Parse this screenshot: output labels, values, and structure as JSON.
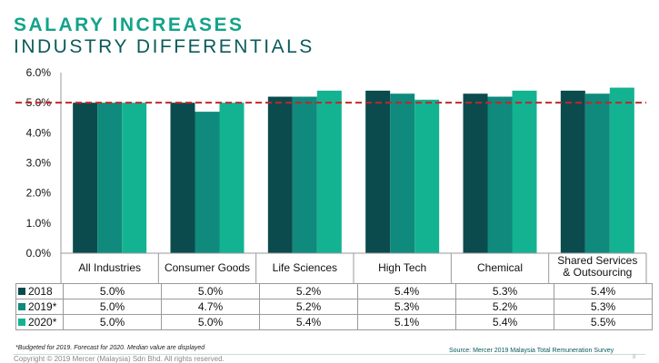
{
  "header": {
    "title_line1": "SALARY INCREASES",
    "title_line2": "INDUSTRY DIFFERENTIALS"
  },
  "colors": {
    "title_accent": "#13a38a",
    "title_dark": "#0b5a5c",
    "series_2018": "#0b4b4d",
    "series_2019": "#0f8a7c",
    "series_2020": "#13b391",
    "reference_line": "#c0272d"
  },
  "chart_data": {
    "type": "bar",
    "categories": [
      "All Industries",
      "Consumer Goods",
      "Life Sciences",
      "High Tech",
      "Chemical",
      "Shared Services & Outsourcing"
    ],
    "category_labels": [
      [
        "All Industries"
      ],
      [
        "Consumer Goods"
      ],
      [
        "Life Sciences"
      ],
      [
        "High Tech"
      ],
      [
        "Chemical"
      ],
      [
        "Shared Services",
        "& Outsourcing"
      ]
    ],
    "series": [
      {
        "name": "2018",
        "values": [
          5.0,
          5.0,
          5.2,
          5.4,
          5.3,
          5.4
        ],
        "labels": [
          "5.0%",
          "5.0%",
          "5.2%",
          "5.4%",
          "5.3%",
          "5.4%"
        ]
      },
      {
        "name": "2019*",
        "values": [
          5.0,
          4.7,
          5.2,
          5.3,
          5.2,
          5.3
        ],
        "labels": [
          "5.0%",
          "4.7%",
          "5.2%",
          "5.3%",
          "5.2%",
          "5.3%"
        ]
      },
      {
        "name": "2020*",
        "values": [
          5.0,
          5.0,
          5.4,
          5.1,
          5.4,
          5.5
        ],
        "labels": [
          "5.0%",
          "5.0%",
          "5.4%",
          "5.1%",
          "5.4%",
          "5.5%"
        ]
      }
    ],
    "yticks": [
      "0.0%",
      "1.0%",
      "2.0%",
      "3.0%",
      "4.0%",
      "5.0%",
      "6.0%"
    ],
    "ylim": [
      0,
      6
    ],
    "reference_line": 5.0,
    "legend": "data-table-below",
    "grid": false
  },
  "footer": {
    "footnote": "*Budgeted for 2019. Forecast for 2020. Median value are displayed",
    "source": "Source: Mercer 2019 Malaysia Total Remuneration Survey",
    "copyright": "Copyright © 2019 Mercer (Malaysia) Sdn Bhd. All rights reserved.",
    "page_number": "8"
  }
}
